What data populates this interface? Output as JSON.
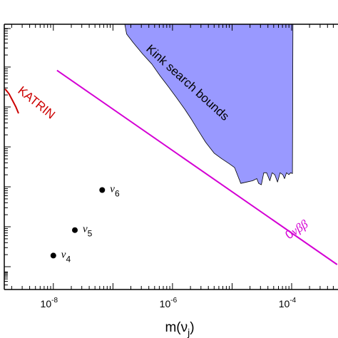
{
  "chart_data": {
    "type": "scatter",
    "xlabel": "m(ν",
    "xlabel_sub": "j",
    "xlabel_close": ")",
    "xscale": "log",
    "xlim": [
      1.5e-09,
      0.0006
    ],
    "xtick_labels": [
      {
        "base": "10",
        "exp": "-8",
        "value": 1e-08
      },
      {
        "base": "10",
        "exp": "-6",
        "value": 1e-06
      },
      {
        "base": "10",
        "exp": "-4",
        "value": 0.0001
      }
    ],
    "ylim": [
      0,
      1
    ],
    "grid": false,
    "series": [
      {
        "name": "Kink search bounds",
        "kind": "shaded-region",
        "fill": "#9999ff",
        "boundary": [
          [
            1.58e-07,
            1.0
          ],
          [
            1.7e-07,
            0.963
          ],
          [
            2.2e-07,
            0.93
          ],
          [
            3.2e-07,
            0.886
          ],
          [
            4.5e-07,
            0.85
          ],
          [
            6.2e-07,
            0.805
          ],
          [
            8.5e-07,
            0.765
          ],
          [
            1.15e-06,
            0.725
          ],
          [
            1.6e-06,
            0.68
          ],
          [
            2.1e-06,
            0.64
          ],
          [
            2.7e-06,
            0.6
          ],
          [
            3.6e-06,
            0.555
          ],
          [
            5e-06,
            0.514
          ],
          [
            6.7e-06,
            0.493
          ],
          [
            9e-06,
            0.474
          ],
          [
            1.1e-05,
            0.46
          ],
          [
            1.4e-05,
            0.4
          ],
          [
            1.75e-05,
            0.405
          ],
          [
            2.2e-05,
            0.41
          ],
          [
            2.6e-05,
            0.418
          ],
          [
            2.8e-05,
            0.4
          ],
          [
            3.1e-05,
            0.395
          ],
          [
            3.4e-05,
            0.44
          ],
          [
            3.8e-05,
            0.44
          ],
          [
            4.3e-05,
            0.41
          ],
          [
            4.7e-05,
            0.44
          ],
          [
            5.2e-05,
            0.433
          ],
          [
            5.8e-05,
            0.405
          ],
          [
            6.4e-05,
            0.44
          ],
          [
            7.1e-05,
            0.433
          ],
          [
            7.6e-05,
            0.418
          ],
          [
            8.2e-05,
            0.44
          ],
          [
            9e-05,
            0.433
          ],
          [
            9.6e-05,
            0.44
          ],
          [
            0.000103,
            0.437
          ],
          [
            0.000105,
            1.0
          ]
        ],
        "label": "Kink search bounds"
      },
      {
        "name": "0νββ",
        "kind": "line",
        "color": "#d400d4",
        "points": [
          [
            1.15e-08,
            0.826
          ],
          [
            0.00058,
            0.094
          ]
        ],
        "label_parts": [
          "0",
          "ν",
          "β",
          "β"
        ]
      },
      {
        "name": "KATRIN",
        "kind": "curve",
        "color": "#cc0000",
        "points": [
          [
            1.55e-09,
            0.756
          ],
          [
            1.8e-09,
            0.738
          ],
          [
            2.05e-09,
            0.714
          ],
          [
            2.35e-09,
            0.688
          ],
          [
            2.6e-09,
            0.664
          ]
        ],
        "label": "KATRIN"
      },
      {
        "name": "neutrinos",
        "kind": "points",
        "color": "#000000",
        "points": [
          {
            "x": 1e-08,
            "y": 0.128,
            "label_base": "ν",
            "label_sub": "4"
          },
          {
            "x": 2.3e-08,
            "y": 0.224,
            "label_base": "ν",
            "label_sub": "5"
          },
          {
            "x": 6.6e-08,
            "y": 0.375,
            "label_base": "ν",
            "label_sub": "6"
          }
        ]
      }
    ]
  }
}
